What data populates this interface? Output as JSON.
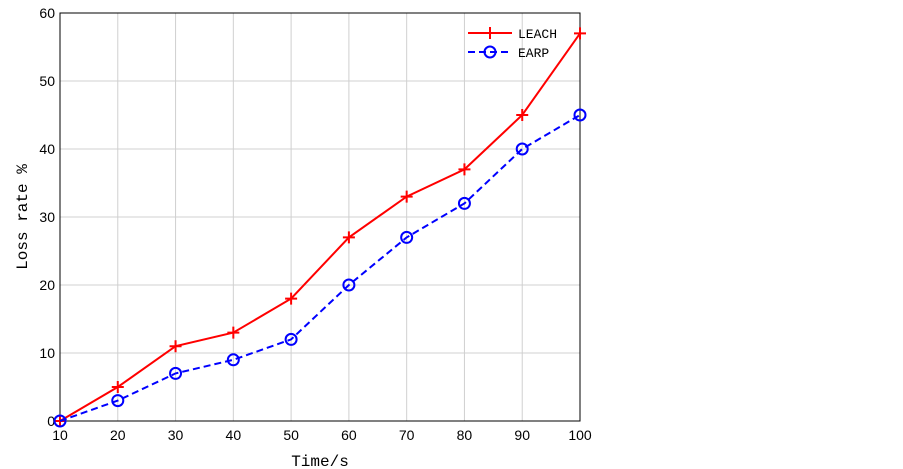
{
  "chart_data": {
    "type": "line",
    "xlabel": "Time/s",
    "ylabel": "Loss rate %",
    "x": [
      10,
      20,
      30,
      40,
      50,
      60,
      70,
      80,
      90,
      100
    ],
    "xlim": [
      10,
      100
    ],
    "ylim": [
      0,
      60
    ],
    "xticks": [
      10,
      20,
      30,
      40,
      50,
      60,
      70,
      80,
      90,
      100
    ],
    "yticks": [
      0,
      10,
      20,
      30,
      40,
      50,
      60
    ],
    "grid": true,
    "legend_position": "top-right",
    "series": [
      {
        "name": "LEACH",
        "values": [
          0,
          5,
          11,
          13,
          18,
          27,
          33,
          37,
          45,
          57
        ],
        "color": "#ff0000",
        "line_style": "solid",
        "marker": "plus"
      },
      {
        "name": "EARP",
        "values": [
          0,
          3,
          7,
          9,
          12,
          20,
          27,
          32,
          40,
          45
        ],
        "color": "#0000ff",
        "line_style": "dashed",
        "marker": "circle"
      }
    ]
  }
}
